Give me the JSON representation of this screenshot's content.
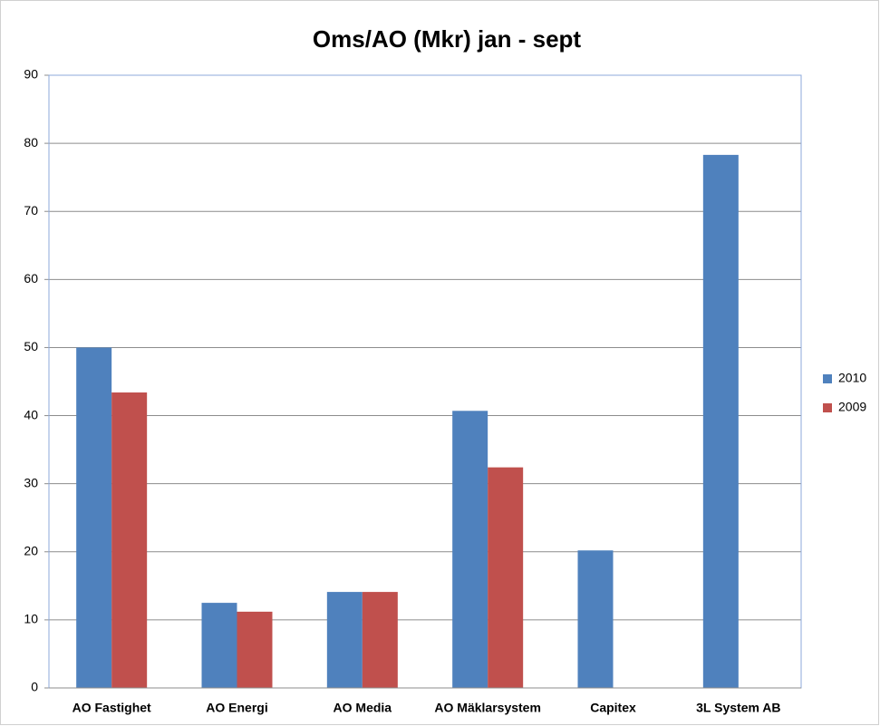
{
  "chart_data": {
    "type": "bar",
    "title": "Oms/AO (Mkr) jan - sept",
    "categories": [
      "AO Fastighet",
      "AO Energi",
      "AO Media",
      "AO Mäklarsystem",
      "Capitex",
      "3L System AB"
    ],
    "series": [
      {
        "name": "2010",
        "color": "#4f81bd",
        "values": [
          50,
          12.5,
          14.1,
          40.7,
          20.2,
          78.3
        ]
      },
      {
        "name": "2009",
        "color": "#c0504d",
        "values": [
          43.4,
          11.2,
          14.1,
          32.4,
          null,
          null
        ]
      }
    ],
    "ylim": [
      0,
      90
    ],
    "yticks": [
      0,
      10,
      20,
      30,
      40,
      50,
      60,
      70,
      80,
      90
    ],
    "grid": true,
    "legend": "right"
  }
}
